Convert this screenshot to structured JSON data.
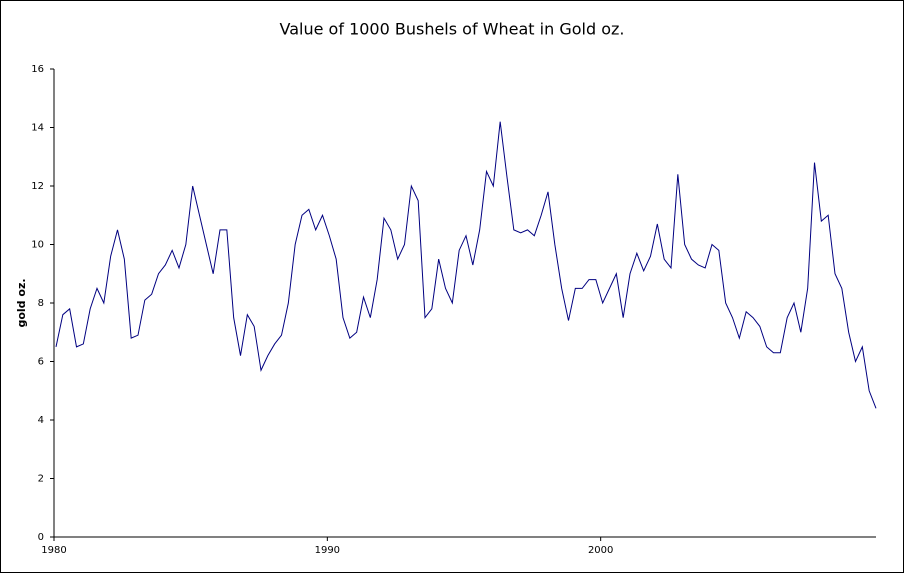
{
  "chart_data": {
    "type": "line",
    "title": "Value of 1000 Bushels of Wheat in Gold oz.",
    "y_label": "gold oz.",
    "x": [
      1980,
      1980.25,
      1980.5,
      1980.75,
      1981,
      1981.25,
      1981.5,
      1981.75,
      1982,
      1982.25,
      1982.5,
      1982.75,
      1983,
      1983.25,
      1983.5,
      1983.75,
      1984,
      1984.25,
      1984.5,
      1984.75,
      1985,
      1985.25,
      1985.5,
      1985.75,
      1986,
      1986.25,
      1986.5,
      1986.75,
      1987,
      1987.25,
      1987.5,
      1987.75,
      1988,
      1988.25,
      1988.5,
      1988.75,
      1989,
      1989.25,
      1989.5,
      1989.75,
      1990,
      1990.25,
      1990.5,
      1990.75,
      1991,
      1991.25,
      1991.5,
      1991.75,
      1992,
      1992.25,
      1992.5,
      1992.75,
      1993,
      1993.25,
      1993.5,
      1993.75,
      1994,
      1994.25,
      1994.5,
      1994.75,
      1995,
      1995.25,
      1995.5,
      1995.75,
      1996,
      1996.25,
      1996.5,
      1996.75,
      1997,
      1997.25,
      1997.5,
      1997.75,
      1998,
      1998.25,
      1998.5,
      1998.75,
      1999,
      1999.25,
      1999.5,
      1999.75,
      2000,
      2000.25,
      2000.5,
      2000.75,
      2001,
      2001.25,
      2001.5,
      2001.75,
      2002,
      2002.25,
      2002.5,
      2002.75,
      2003,
      2003.25,
      2003.5,
      2003.75,
      2004,
      2004.25,
      2004.5,
      2004.75,
      2005,
      2005.25,
      2005.5,
      2005.75,
      2006,
      2006.25,
      2006.5,
      2006.75,
      2007,
      2007.25,
      2007.5,
      2007.75,
      2008,
      2008.25,
      2008.5,
      2008.75,
      2009,
      2009.25,
      2009.5,
      2009.75,
      2010
    ],
    "series": [
      {
        "name": "gold oz.",
        "color": "#000080",
        "values": [
          6.5,
          7.6,
          7.8,
          6.5,
          6.6,
          7.8,
          8.5,
          8.0,
          9.6,
          10.5,
          9.5,
          6.8,
          6.9,
          8.1,
          8.3,
          9.0,
          9.3,
          9.8,
          9.2,
          10.0,
          12.0,
          11.0,
          10.0,
          9.0,
          10.5,
          10.5,
          7.5,
          6.2,
          7.6,
          7.2,
          5.7,
          6.2,
          6.6,
          6.9,
          8.0,
          10.0,
          11.0,
          11.2,
          10.5,
          11.0,
          10.3,
          9.5,
          7.5,
          6.8,
          7.0,
          8.2,
          7.5,
          8.8,
          10.9,
          10.5,
          9.5,
          10.0,
          12.0,
          11.5,
          7.5,
          7.8,
          9.5,
          8.5,
          8.0,
          9.8,
          10.3,
          9.3,
          10.5,
          12.5,
          12.0,
          14.2,
          12.3,
          10.5,
          10.4,
          10.5,
          10.3,
          11.0,
          11.8,
          10.0,
          8.5,
          7.4,
          8.5,
          8.5,
          8.8,
          8.8,
          8.0,
          8.5,
          9.0,
          7.5,
          9.0,
          9.7,
          9.1,
          9.6,
          10.7,
          9.5,
          9.2,
          12.4,
          10.0,
          9.5,
          9.3,
          9.2,
          10.0,
          9.8,
          8.0,
          7.5,
          6.8,
          7.7,
          7.5,
          7.2,
          6.5,
          6.3,
          6.3,
          7.5,
          8.0,
          7.0,
          8.5,
          12.8,
          10.8,
          11.0,
          9.0,
          8.5,
          7.0,
          6.0,
          6.5,
          5.0,
          4.4
        ]
      }
    ],
    "xlim": [
      1980,
      2010
    ],
    "xticks": [
      1980,
      1990,
      2000
    ],
    "ylim": [
      0,
      16
    ],
    "yticks": [
      0,
      2,
      4,
      6,
      8,
      10,
      12,
      14,
      16
    ]
  }
}
